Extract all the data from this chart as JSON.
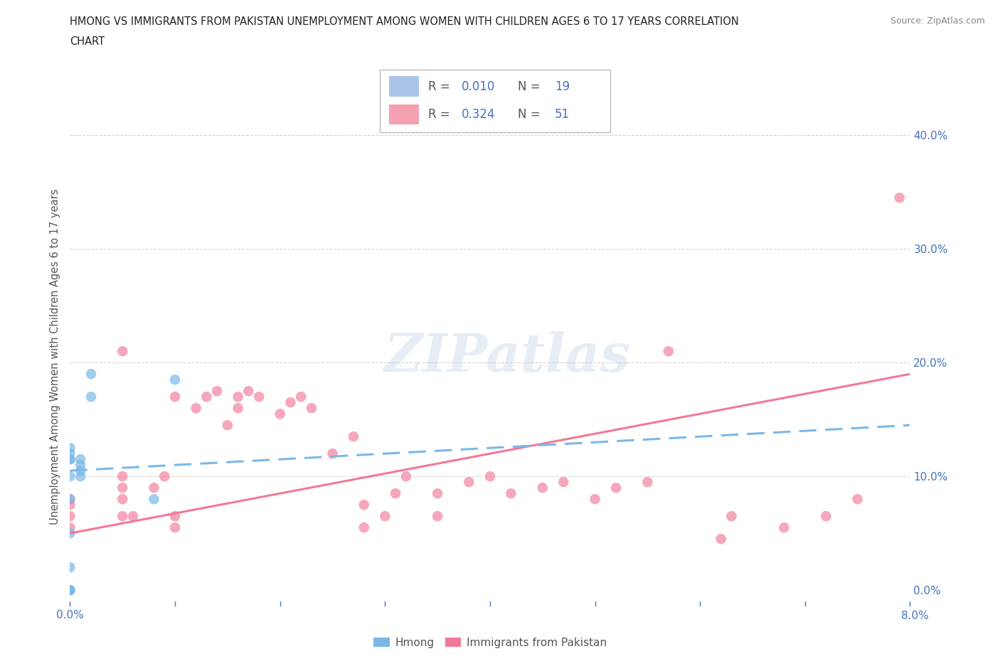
{
  "title_line1": "HMONG VS IMMIGRANTS FROM PAKISTAN UNEMPLOYMENT AMONG WOMEN WITH CHILDREN AGES 6 TO 17 YEARS CORRELATION",
  "title_line2": "CHART",
  "source_text": "Source: ZipAtlas.com",
  "ylabel": "Unemployment Among Women with Children Ages 6 to 17 years",
  "watermark": "ZIPatlas",
  "ytick_labels": [
    "0.0%",
    "10.0%",
    "20.0%",
    "30.0%",
    "40.0%"
  ],
  "ytick_values": [
    0.0,
    0.1,
    0.2,
    0.3,
    0.4
  ],
  "xtick_positions": [
    0.0,
    0.01,
    0.02,
    0.03,
    0.04,
    0.05,
    0.06,
    0.07,
    0.08
  ],
  "xlim": [
    0.0,
    0.08
  ],
  "ylim": [
    -0.01,
    0.42
  ],
  "hmong_color": "#7ab8e8",
  "pakistan_color": "#f27898",
  "hmong_scatter_x": [
    0.0,
    0.0,
    0.0,
    0.0,
    0.0,
    0.0,
    0.0,
    0.0,
    0.0,
    0.0,
    0.0,
    0.001,
    0.001,
    0.001,
    0.001,
    0.002,
    0.002,
    0.008,
    0.01
  ],
  "hmong_scatter_y": [
    0.0,
    0.0,
    0.0,
    0.02,
    0.05,
    0.08,
    0.1,
    0.115,
    0.115,
    0.12,
    0.125,
    0.1,
    0.105,
    0.11,
    0.115,
    0.17,
    0.19,
    0.08,
    0.185
  ],
  "pakistan_scatter_x": [
    0.0,
    0.0,
    0.0,
    0.0,
    0.005,
    0.005,
    0.005,
    0.005,
    0.005,
    0.006,
    0.008,
    0.009,
    0.01,
    0.01,
    0.01,
    0.012,
    0.013,
    0.014,
    0.015,
    0.016,
    0.016,
    0.017,
    0.018,
    0.02,
    0.021,
    0.022,
    0.023,
    0.025,
    0.027,
    0.028,
    0.028,
    0.03,
    0.031,
    0.032,
    0.035,
    0.035,
    0.038,
    0.04,
    0.042,
    0.045,
    0.047,
    0.05,
    0.052,
    0.055,
    0.057,
    0.062,
    0.063,
    0.068,
    0.072,
    0.075,
    0.079
  ],
  "pakistan_scatter_y": [
    0.055,
    0.065,
    0.075,
    0.08,
    0.065,
    0.08,
    0.09,
    0.1,
    0.21,
    0.065,
    0.09,
    0.1,
    0.055,
    0.065,
    0.17,
    0.16,
    0.17,
    0.175,
    0.145,
    0.16,
    0.17,
    0.175,
    0.17,
    0.155,
    0.165,
    0.17,
    0.16,
    0.12,
    0.135,
    0.055,
    0.075,
    0.065,
    0.085,
    0.1,
    0.065,
    0.085,
    0.095,
    0.1,
    0.085,
    0.09,
    0.095,
    0.08,
    0.09,
    0.095,
    0.21,
    0.045,
    0.065,
    0.055,
    0.065,
    0.08,
    0.345
  ],
  "hmong_trend_x": [
    0.0,
    0.08
  ],
  "hmong_trend_y": [
    0.105,
    0.145
  ],
  "pakistan_trend_x": [
    0.0,
    0.08
  ],
  "pakistan_trend_y": [
    0.05,
    0.19
  ],
  "grid_color": "#cccccc",
  "background_color": "#ffffff",
  "title_color": "#222222",
  "axis_label_color": "#4472c4",
  "legend_box_color": "#aac4e8",
  "legend_box_color2": "#f4a0b0",
  "r_n_color": "#4472c4",
  "r_n_label_color": "#444444"
}
